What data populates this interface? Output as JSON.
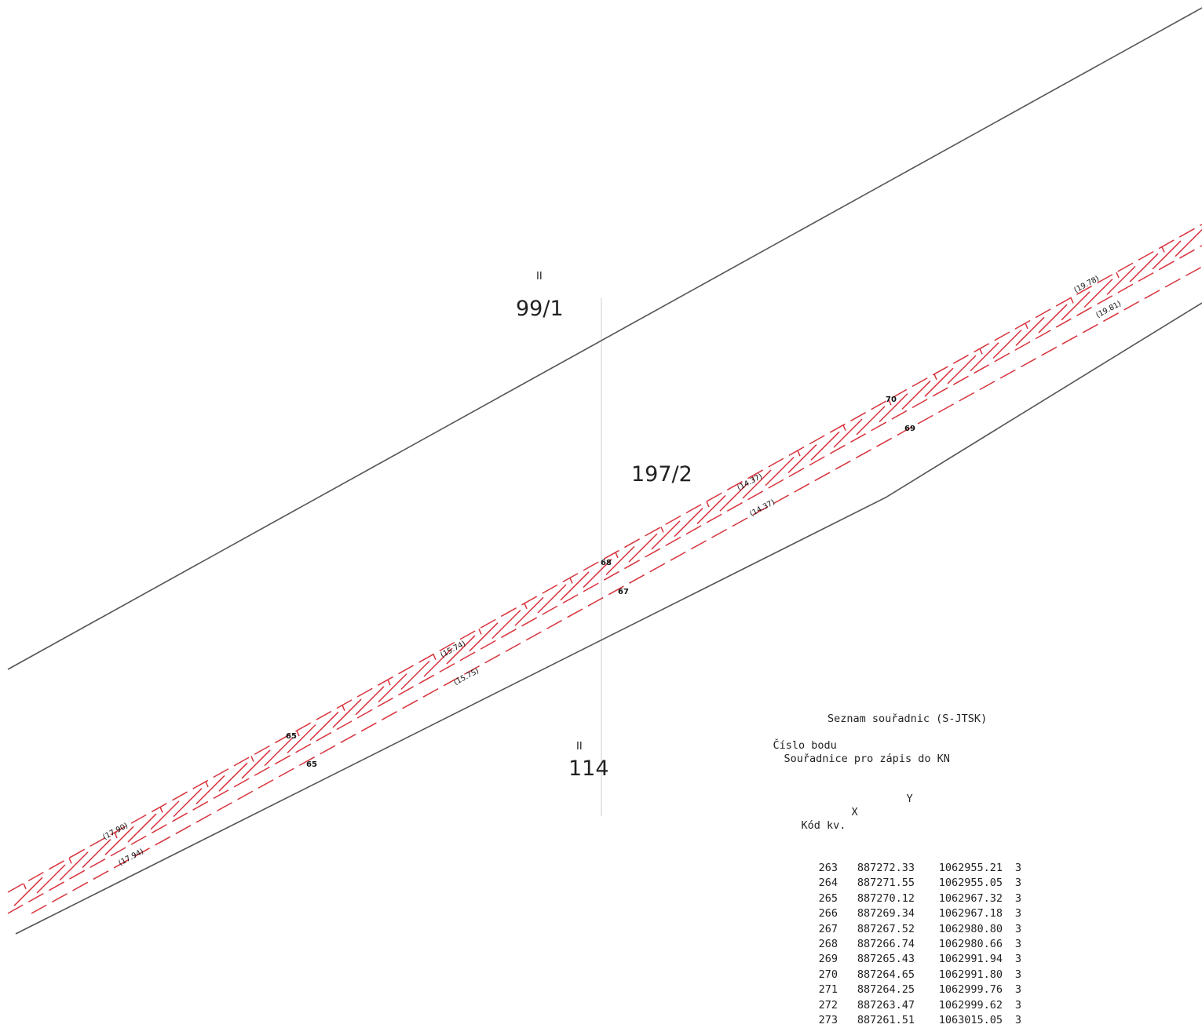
{
  "parcels": {
    "top": {
      "number": "99/1",
      "mark": "II"
    },
    "middle": {
      "number": "197/2"
    },
    "bottom": {
      "number": "114",
      "mark": "II"
    }
  },
  "point_labels": [
    "65",
    "65",
    "67",
    "68",
    "69",
    "70"
  ],
  "distance_labels": [
    "(17.90)",
    "(17.94)",
    "(15.74)",
    "(15.75)",
    "(14.37)",
    "(14.37)",
    "(19.78)",
    "(19.81)"
  ],
  "coordinates_table": {
    "title": "Seznam souřadnic (S-JTSK)",
    "col_point": "Číslo bodu",
    "col_coords": "Souřadnice pro zápis do KN",
    "col_y": "Y",
    "col_x": "X",
    "col_code": "Kód kv.",
    "rows": [
      {
        "n": "263",
        "y": "887272.33",
        "x": "1062955.21",
        "k": "3"
      },
      {
        "n": "264",
        "y": "887271.55",
        "x": "1062955.05",
        "k": "3"
      },
      {
        "n": "265",
        "y": "887270.12",
        "x": "1062967.32",
        "k": "3"
      },
      {
        "n": "266",
        "y": "887269.34",
        "x": "1062967.18",
        "k": "3"
      },
      {
        "n": "267",
        "y": "887267.52",
        "x": "1062980.80",
        "k": "3"
      },
      {
        "n": "268",
        "y": "887266.74",
        "x": "1062980.66",
        "k": "3"
      },
      {
        "n": "269",
        "y": "887265.43",
        "x": "1062991.94",
        "k": "3"
      },
      {
        "n": "270",
        "y": "887264.65",
        "x": "1062991.80",
        "k": "3"
      },
      {
        "n": "271",
        "y": "887264.25",
        "x": "1062999.76",
        "k": "3"
      },
      {
        "n": "272",
        "y": "887263.47",
        "x": "1062999.62",
        "k": "3"
      },
      {
        "n": "273",
        "y": "887261.51",
        "x": "1063015.05",
        "k": "3"
      }
    ]
  },
  "colors": {
    "boundary": "#555555",
    "easement": "#d8323c",
    "faint": "#cfcfcf"
  }
}
